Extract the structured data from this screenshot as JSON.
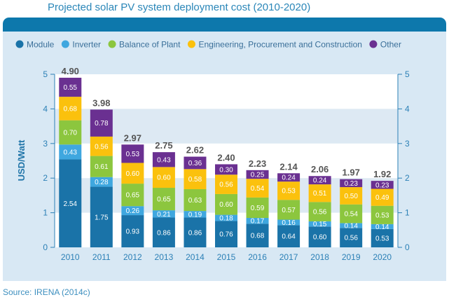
{
  "title": "Projected solar PV system deployment cost (2010-2020)",
  "source": "Source: IRENA (2014c)",
  "chart_data": {
    "type": "bar",
    "stacked": true,
    "title": "Projected solar PV system deployment cost (2010-2020)",
    "ylabel": "USD/Watt",
    "xlabel": "",
    "ylim": [
      0,
      5
    ],
    "yticks": [
      "0",
      "1",
      "2",
      "3",
      "4",
      "5"
    ],
    "secondary_y_axis": true,
    "legend_position": "top",
    "categories": [
      "2010",
      "2011",
      "2012",
      "2013",
      "2014",
      "2015",
      "2016",
      "2017",
      "2018",
      "2019",
      "2020"
    ],
    "totals": [
      "4.90",
      "3.98",
      "2.97",
      "2.75",
      "2.62",
      "2.40",
      "2.23",
      "2.14",
      "2.06",
      "1.97",
      "1.92"
    ],
    "series": [
      {
        "name": "Module",
        "color": "#1a73a8",
        "values": [
          2.54,
          1.75,
          0.93,
          0.86,
          0.86,
          0.76,
          0.68,
          0.64,
          0.6,
          0.56,
          0.53
        ],
        "labels": [
          "2.54",
          "1.75",
          "0.93",
          "0.86",
          "0.86",
          "0.76",
          "0.68",
          "0.64",
          "0.60",
          "0.56",
          "0.53"
        ]
      },
      {
        "name": "Inverter",
        "color": "#3fa7df",
        "values": [
          0.43,
          0.28,
          0.26,
          0.21,
          0.19,
          0.18,
          0.17,
          0.16,
          0.15,
          0.14,
          0.14
        ],
        "labels": [
          "0.43",
          "0.28",
          "0.26",
          "0.21",
          "0.19",
          "0.18",
          "0.17",
          "0.16",
          "0.15",
          "0.14",
          "0.14"
        ]
      },
      {
        "name": "Balance of Plant",
        "color": "#8cc63e",
        "values": [
          0.7,
          0.61,
          0.65,
          0.65,
          0.63,
          0.6,
          0.59,
          0.57,
          0.56,
          0.54,
          0.53
        ],
        "labels": [
          "0.70",
          "0.61",
          "0.65",
          "0.65",
          "0.63",
          "0.60",
          "0.59",
          "0.57",
          "0.56",
          "0.54",
          "0.53"
        ]
      },
      {
        "name": "Engineering, Procurement and Construction",
        "color": "#fbc10d",
        "values": [
          0.68,
          0.56,
          0.6,
          0.6,
          0.58,
          0.56,
          0.54,
          0.53,
          0.51,
          0.5,
          0.49
        ],
        "labels": [
          "0.68",
          "0.56",
          "0.60",
          "0.60",
          "0.58",
          "0.56",
          "0.54",
          "0.53",
          "0.51",
          "0.50",
          "0.49"
        ]
      },
      {
        "name": "Other",
        "color": "#6a3091",
        "values": [
          0.55,
          0.78,
          0.53,
          0.43,
          0.36,
          0.3,
          0.25,
          0.24,
          0.24,
          0.23,
          0.23
        ],
        "labels": [
          "0.55",
          "0.78",
          "0.53",
          "0.43",
          "0.36",
          "0.30",
          "0.25",
          "0.24",
          "0.24",
          "0.23",
          "0.23"
        ]
      }
    ],
    "colors": {
      "accent": "#0d78ac",
      "axis": "#2c80b6",
      "panel": "#d8e8f4",
      "value_label": "#555555"
    }
  }
}
